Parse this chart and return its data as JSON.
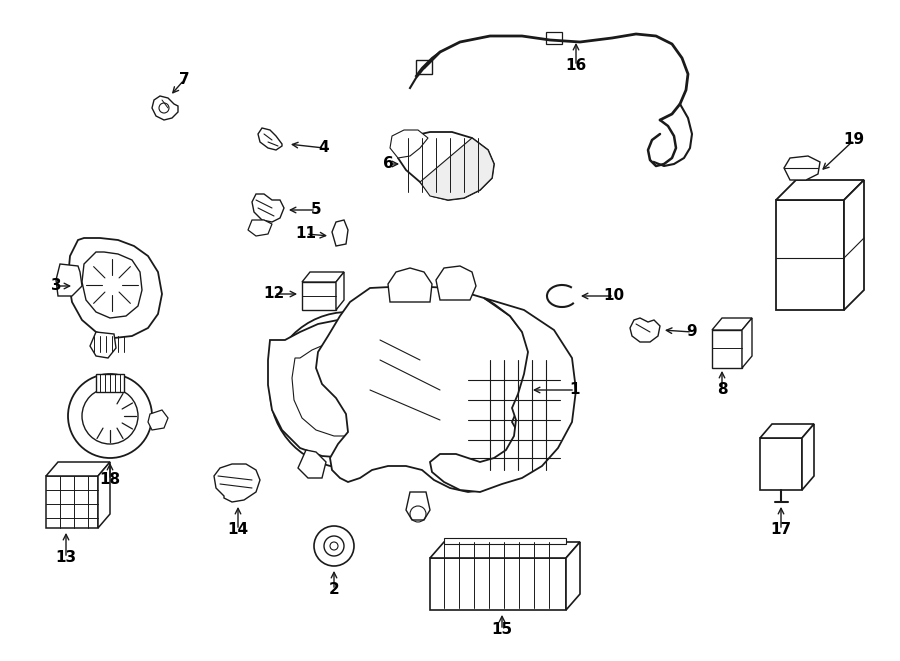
{
  "bg_color": "#ffffff",
  "line_color": "#1a1a1a",
  "text_color": "#000000",
  "fig_w": 9.0,
  "fig_h": 6.61,
  "dpi": 100
}
